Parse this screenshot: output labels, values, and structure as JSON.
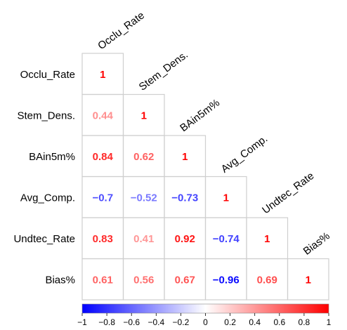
{
  "chart_data": {
    "type": "heatmap",
    "variables": [
      "Occlu_Rate",
      "Stem_Dens.",
      "BAin5m%",
      "Avg_Comp.",
      "Undtec_Rate",
      "Bias%"
    ],
    "matrix_lower": [
      [
        "1"
      ],
      [
        "0.44",
        "1"
      ],
      [
        "0.84",
        "0.62",
        "1"
      ],
      [
        "−0.7",
        "−0.52",
        "−0.73",
        "1"
      ],
      [
        "0.83",
        "0.41",
        "0.92",
        "−0.74",
        "1"
      ],
      [
        "0.61",
        "0.56",
        "0.67",
        "−0.96",
        "0.69",
        "1"
      ]
    ],
    "colorbar": {
      "range": [
        -1,
        1
      ],
      "ticks": [
        "−1",
        "−0.8",
        "−0.6",
        "−0.4",
        "−0.2",
        "0",
        "0.2",
        "0.4",
        "0.6",
        "0.8",
        "1"
      ],
      "colors": {
        "negative": "#0000ff",
        "middle": "#ffffff",
        "positive": "#ff0000"
      }
    },
    "grid": true
  }
}
